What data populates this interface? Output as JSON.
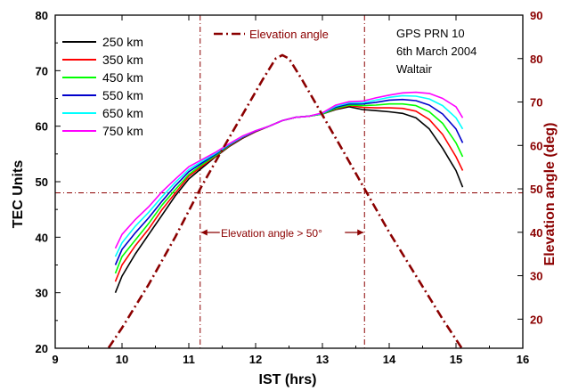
{
  "chart_data": {
    "type": "line",
    "xlabel": "IST (hrs)",
    "ylabel": "TEC Units",
    "y2label": "Elevation angle (deg)",
    "xlim": [
      9,
      16
    ],
    "ylim": [
      20,
      80
    ],
    "y2lim": [
      13.3,
      90
    ],
    "xticks": [
      "9",
      "10",
      "11",
      "12",
      "13",
      "14",
      "15",
      "16"
    ],
    "yticks": [
      "20",
      "30",
      "40",
      "50",
      "60",
      "70",
      "80"
    ],
    "y2ticks": [
      "20",
      "30",
      "40",
      "50",
      "60",
      "70",
      "80",
      "90"
    ],
    "legend_placement": "top-left",
    "annotations": {
      "station": [
        "GPS PRN 10",
        "6th March 2004",
        "Waltair"
      ],
      "elevation_label": "Elevation angle",
      "window_label": "Elevation angle > 50°"
    },
    "reference_lines": {
      "horizontal_tec": 48,
      "vertical_x": [
        11.17,
        13.63
      ]
    },
    "x": [
      9.9,
      10.0,
      10.2,
      10.4,
      10.6,
      10.8,
      11.0,
      11.2,
      11.4,
      11.6,
      11.8,
      12.0,
      12.2,
      12.4,
      12.6,
      12.8,
      13.0,
      13.2,
      13.4,
      13.6,
      13.8,
      14.0,
      14.2,
      14.4,
      14.6,
      14.8,
      15.0,
      15.1
    ],
    "series": [
      {
        "name": "250 km",
        "color": "#000000",
        "values": [
          30,
          33,
          37,
          40.5,
          44,
          47.5,
          50.5,
          52.5,
          54.5,
          56.3,
          57.8,
          59,
          60,
          61,
          61.6,
          61.8,
          62.2,
          63,
          63.5,
          63,
          62.8,
          62.6,
          62.3,
          61.5,
          59.5,
          56,
          52,
          49
        ]
      },
      {
        "name": "350 km",
        "color": "#ff0000",
        "values": [
          32,
          35,
          38.5,
          41.5,
          45,
          48,
          51,
          52.8,
          54.6,
          56.4,
          57.9,
          59,
          60,
          61,
          61.6,
          61.8,
          62.2,
          63.1,
          63.7,
          63.4,
          63.3,
          63.3,
          63.2,
          62.7,
          61.2,
          58.5,
          54.5,
          52
        ]
      },
      {
        "name": "450 km",
        "color": "#00ff00",
        "values": [
          33.5,
          36.5,
          39.5,
          42.5,
          45.8,
          48.6,
          51.3,
          53.1,
          54.7,
          56.5,
          58,
          59.1,
          60,
          61,
          61.6,
          61.8,
          62.2,
          63.2,
          63.8,
          63.7,
          63.8,
          64,
          64,
          63.7,
          62.6,
          60.5,
          57,
          54.5
        ]
      },
      {
        "name": "550 km",
        "color": "#0000cc",
        "values": [
          35,
          37.8,
          40.8,
          43.5,
          46.5,
          49.3,
          51.8,
          53.4,
          54.9,
          56.6,
          58,
          59.1,
          60,
          61,
          61.6,
          61.8,
          62.3,
          63.4,
          64,
          64,
          64.3,
          64.7,
          64.8,
          64.6,
          63.8,
          62.2,
          59.5,
          57
        ]
      },
      {
        "name": "650 km",
        "color": "#00ffff",
        "values": [
          36.5,
          39,
          42,
          44.5,
          47.3,
          49.9,
          52.2,
          53.7,
          55.1,
          56.7,
          58.1,
          59.2,
          60,
          61,
          61.6,
          61.8,
          62.3,
          63.6,
          64.2,
          64.2,
          64.7,
          65.2,
          65.5,
          65.4,
          64.9,
          63.7,
          61.5,
          59.5
        ]
      },
      {
        "name": "750 km",
        "color": "#ff00ff",
        "values": [
          38,
          40.5,
          43.2,
          45.5,
          48.2,
          50.5,
          52.7,
          54,
          55.3,
          56.8,
          58.2,
          59.2,
          60,
          61,
          61.6,
          61.8,
          62.4,
          63.8,
          64.4,
          64.5,
          65.1,
          65.6,
          66,
          66.1,
          65.9,
          65,
          63.5,
          61.5
        ]
      }
    ],
    "elevation": {
      "name": "Elevation angle",
      "axis": "right",
      "color": "#8b0000",
      "x": [
        9.65,
        10.0,
        10.4,
        10.8,
        11.17,
        11.5,
        11.8,
        12.1,
        12.3,
        12.4,
        12.5,
        12.7,
        13.0,
        13.3,
        13.63,
        14.0,
        14.4,
        14.8,
        15.1
      ],
      "values": [
        10,
        18,
        28,
        39,
        50,
        59,
        67,
        75,
        80,
        80.8,
        80,
        75,
        67,
        59,
        50,
        40,
        30,
        20,
        13
      ]
    }
  }
}
